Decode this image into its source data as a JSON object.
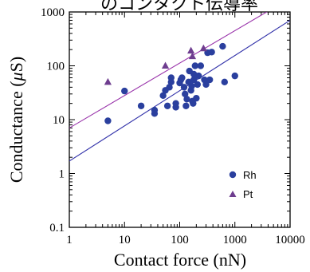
{
  "top_text": "のコンタクト伝導率",
  "chart_data": {
    "type": "scatter",
    "title": "",
    "xlabel": "Contact force (nN)",
    "ylabel_prefix": "Conductance (",
    "ylabel_mu": "μ",
    "ylabel_suffix": "S)",
    "xscale": "log",
    "yscale": "log",
    "xlim": [
      1,
      10000
    ],
    "ylim": [
      0.1,
      1000
    ],
    "x_ticks": [
      1,
      10,
      100,
      1000,
      10000
    ],
    "x_tick_labels": [
      "1",
      "10",
      "100",
      "1000",
      "10000"
    ],
    "y_ticks": [
      0.1,
      1,
      10,
      100,
      1000
    ],
    "y_tick_labels": [
      "0.1",
      "1",
      "10",
      "100",
      "1000"
    ],
    "grid": false,
    "legend_position": "bottom-right",
    "series": [
      {
        "name": "Rh",
        "marker": "circle",
        "color": "#2a3f9e",
        "points": [
          [
            5,
            9.5
          ],
          [
            10,
            34
          ],
          [
            20,
            18
          ],
          [
            35,
            13
          ],
          [
            35,
            15
          ],
          [
            50,
            28
          ],
          [
            55,
            35
          ],
          [
            60,
            18
          ],
          [
            65,
            40
          ],
          [
            70,
            50
          ],
          [
            70,
            60
          ],
          [
            85,
            20
          ],
          [
            85,
            17
          ],
          [
            100,
            48
          ],
          [
            105,
            55
          ],
          [
            110,
            60
          ],
          [
            120,
            40
          ],
          [
            125,
            30
          ],
          [
            130,
            18
          ],
          [
            135,
            24
          ],
          [
            145,
            50
          ],
          [
            150,
            80
          ],
          [
            160,
            35
          ],
          [
            165,
            42
          ],
          [
            170,
            22
          ],
          [
            175,
            20
          ],
          [
            180,
            70
          ],
          [
            190,
            100
          ],
          [
            200,
            25
          ],
          [
            210,
            45
          ],
          [
            220,
            65
          ],
          [
            240,
            100
          ],
          [
            280,
            55
          ],
          [
            300,
            45
          ],
          [
            320,
            175
          ],
          [
            350,
            55
          ],
          [
            380,
            180
          ],
          [
            600,
            230
          ],
          [
            650,
            50
          ],
          [
            1000,
            65
          ],
          [
            180,
            55
          ]
        ]
      },
      {
        "name": "Pt",
        "marker": "triangle",
        "color": "#6e3d8f",
        "points": [
          [
            5,
            50
          ],
          [
            55,
            100
          ],
          [
            160,
            190
          ],
          [
            170,
            150
          ],
          [
            270,
            210
          ]
        ]
      }
    ],
    "fit_lines": [
      {
        "color": "#3333aa",
        "points": [
          [
            1,
            1.7
          ],
          [
            10000,
            700
          ]
        ]
      },
      {
        "color": "#9933aa",
        "points": [
          [
            1,
            7
          ],
          [
            10000,
            1800
          ]
        ]
      }
    ]
  }
}
